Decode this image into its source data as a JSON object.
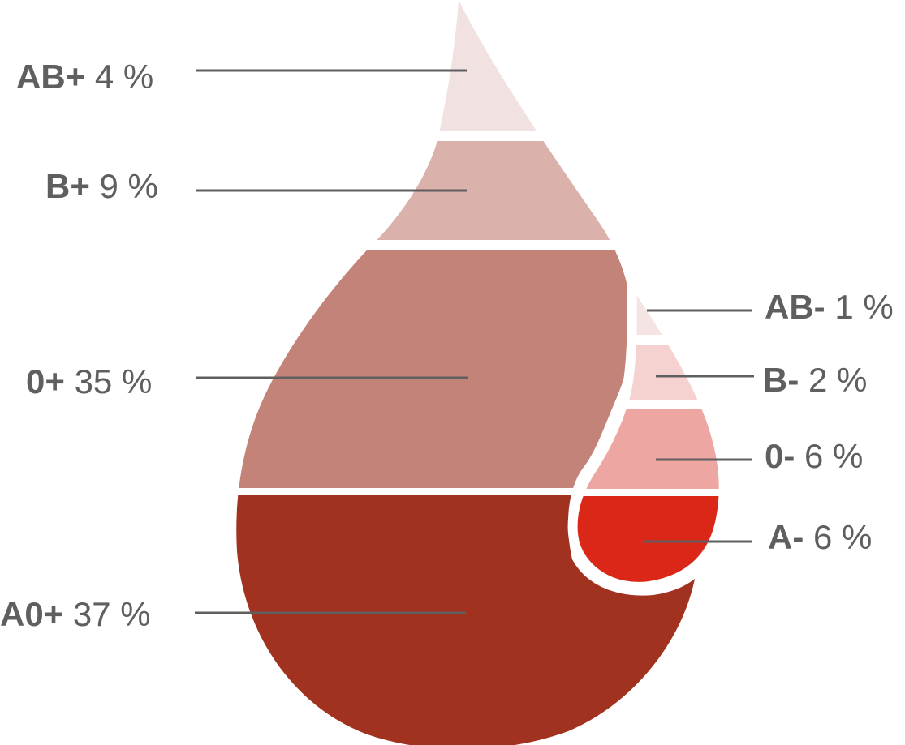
{
  "chart_data": {
    "type": "pie",
    "title": "",
    "series": [
      {
        "name": "",
        "categories": [
          "AB+",
          "B+",
          "0+",
          "A0+"
        ],
        "values": [
          4,
          9,
          35,
          37
        ]
      },
      {
        "name": "",
        "categories": [
          "AB-",
          "B-",
          "0-",
          "A-"
        ],
        "values": [
          1,
          2,
          6,
          6
        ]
      }
    ],
    "unit": "%",
    "segments": [
      {
        "id": "ab-pos",
        "type": "AB+",
        "value": 4,
        "value_label": "4 %",
        "color": "#f1e2e1",
        "group": "large-drop"
      },
      {
        "id": "b-pos",
        "type": "B+",
        "value": 9,
        "value_label": "9 %",
        "color": "#dbb1ab",
        "group": "large-drop"
      },
      {
        "id": "o-pos",
        "type": "0+",
        "value": 35,
        "value_label": "35 %",
        "color": "#c38378",
        "group": "large-drop"
      },
      {
        "id": "a0-pos",
        "type": "A0+",
        "value": 37,
        "value_label": "37 %",
        "color": "#a13220",
        "group": "large-drop"
      },
      {
        "id": "ab-neg",
        "type": "AB-",
        "value": 1,
        "value_label": "1 %",
        "color": "#f5e4e3",
        "group": "small-drop"
      },
      {
        "id": "b-neg",
        "type": "B-",
        "value": 2,
        "value_label": "2 %",
        "color": "#f5d1cf",
        "group": "small-drop"
      },
      {
        "id": "o-neg",
        "type": "0-",
        "value": 6,
        "value_label": "6 %",
        "color": "#eda6a1",
        "group": "small-drop"
      },
      {
        "id": "a-neg",
        "type": "A-",
        "value": 6,
        "value_label": "6 %",
        "color": "#db2718",
        "group": "small-drop"
      }
    ],
    "text_color": "#5f5f5f"
  }
}
